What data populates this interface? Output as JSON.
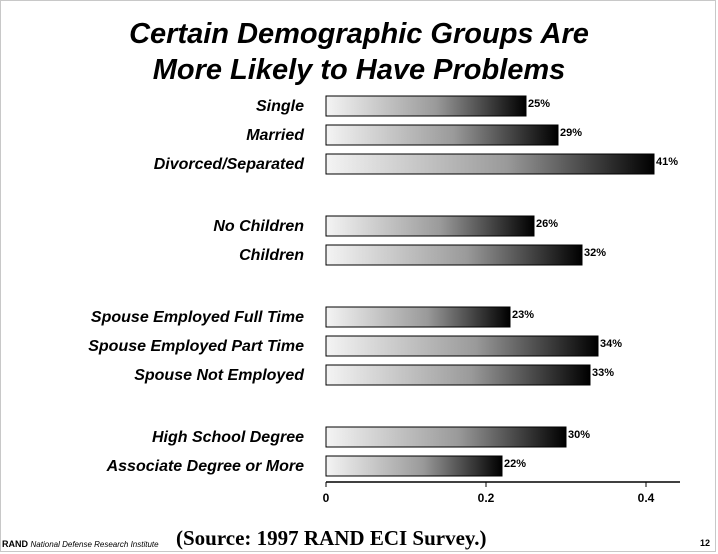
{
  "slide": {
    "title_line1": "Certain Demographic Groups Are",
    "title_line2": "More Likely to Have Problems",
    "source": "(Source:  1997 RAND ECI Survey.)",
    "footer_org": "RAND",
    "footer_institute": "National Defense Research Institute",
    "page_number": "12"
  },
  "chart_data": {
    "type": "bar",
    "orientation": "horizontal",
    "title": "Certain Demographic Groups Are More Likely to Have Problems",
    "xlim": [
      0,
      0.4
    ],
    "xticks": [
      0,
      0.2,
      0.4
    ],
    "xtick_labels": [
      "0",
      "0.2",
      "0.4"
    ],
    "groups": [
      {
        "categories": [
          "Single",
          "Married",
          "Divorced/Separated"
        ],
        "values": [
          0.25,
          0.29,
          0.41
        ],
        "labels": [
          "25%",
          "29%",
          "41%"
        ]
      },
      {
        "categories": [
          "No Children",
          "Children"
        ],
        "values": [
          0.26,
          0.32
        ],
        "labels": [
          "26%",
          "32%"
        ]
      },
      {
        "categories": [
          "Spouse Employed Full Time",
          "Spouse Employed Part Time",
          "Spouse Not Employed"
        ],
        "values": [
          0.23,
          0.34,
          0.33
        ],
        "labels": [
          "23%",
          "34%",
          "33%"
        ]
      },
      {
        "categories": [
          "High School Degree",
          "Associate Degree or More"
        ],
        "values": [
          0.3,
          0.22
        ],
        "labels": [
          "30%",
          "22%"
        ]
      }
    ],
    "bar_fill": "gradient light-to-black",
    "colors": {
      "bar_start": "#f4f4f4",
      "bar_mid": "#9a9a9a",
      "bar_end": "#000000"
    }
  }
}
